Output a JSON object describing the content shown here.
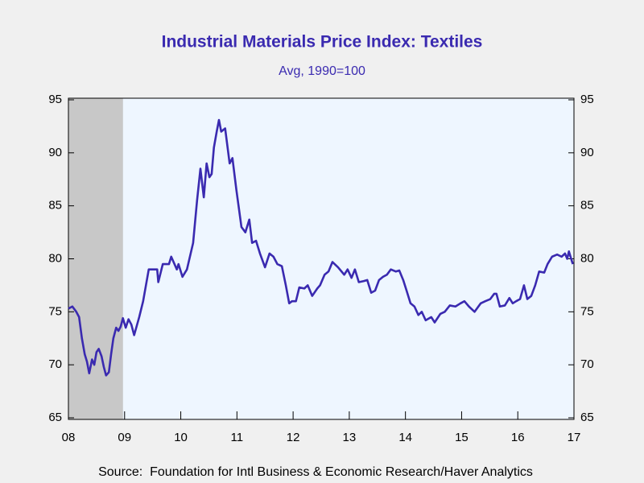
{
  "chart_data": {
    "type": "line",
    "title": "Industrial Materials Price Index: Textiles",
    "subtitle": "Avg, 1990=100",
    "source": "Source:  Foundation for Intl Business & Economic Research/Haver Analytics",
    "x": [
      2008.0,
      2008.07,
      2008.14,
      2008.19,
      2008.24,
      2008.29,
      2008.33,
      2008.37,
      2008.42,
      2008.46,
      2008.5,
      2008.54,
      2008.59,
      2008.63,
      2008.67,
      2008.72,
      2008.76,
      2008.8,
      2008.85,
      2008.89,
      2008.93,
      2008.97,
      2009.02,
      2009.07,
      2009.12,
      2009.17,
      2009.26,
      2009.33,
      2009.43,
      2009.58,
      2009.6,
      2009.68,
      2009.79,
      2009.83,
      2009.93,
      2009.96,
      2010.03,
      2010.11,
      2010.22,
      2010.29,
      2010.35,
      2010.41,
      2010.46,
      2010.51,
      2010.55,
      2010.59,
      2010.64,
      2010.68,
      2010.72,
      2010.79,
      2010.87,
      2010.92,
      2010.99,
      2011.08,
      2011.15,
      2011.22,
      2011.27,
      2011.34,
      2011.41,
      2011.5,
      2011.58,
      2011.65,
      2011.72,
      2011.8,
      2011.87,
      2011.93,
      2011.98,
      2012.05,
      2012.11,
      2012.2,
      2012.26,
      2012.34,
      2012.43,
      2012.48,
      2012.56,
      2012.63,
      2012.7,
      2012.8,
      2012.91,
      2012.97,
      2013.04,
      2013.1,
      2013.17,
      2013.26,
      2013.32,
      2013.39,
      2013.46,
      2013.53,
      2013.6,
      2013.67,
      2013.74,
      2013.83,
      2013.89,
      2013.96,
      2014.02,
      2014.09,
      2014.16,
      2014.23,
      2014.29,
      2014.36,
      2014.46,
      2014.52,
      2014.62,
      2014.7,
      2014.79,
      2014.89,
      2014.98,
      2015.05,
      2015.13,
      2015.23,
      2015.34,
      2015.42,
      2015.51,
      2015.58,
      2015.62,
      2015.68,
      2015.77,
      2015.85,
      2015.91,
      2015.97,
      2016.04,
      2016.11,
      2016.17,
      2016.24,
      2016.31,
      2016.38,
      2016.47,
      2016.53,
      2016.61,
      2016.7,
      2016.78,
      2016.84,
      2016.88,
      2016.91,
      2016.95,
      2016.98
    ],
    "series": [
      {
        "color": "#3a2ab0",
        "values": [
          75.3,
          75.5,
          75.0,
          74.5,
          72.5,
          71.0,
          70.3,
          69.2,
          70.5,
          70.0,
          71.2,
          71.5,
          70.8,
          69.8,
          69.0,
          69.3,
          71.0,
          72.5,
          73.5,
          73.2,
          73.6,
          74.4,
          73.5,
          74.3,
          73.8,
          72.8,
          74.5,
          76.0,
          79.0,
          79.0,
          77.8,
          79.5,
          79.5,
          80.2,
          79.0,
          79.5,
          78.3,
          79.0,
          81.5,
          85.5,
          88.5,
          85.8,
          89.0,
          87.7,
          88.0,
          90.5,
          92.0,
          93.1,
          92.0,
          92.3,
          89.0,
          89.5,
          86.5,
          83.0,
          82.5,
          83.7,
          81.5,
          81.7,
          80.5,
          79.2,
          80.5,
          80.2,
          79.5,
          79.3,
          77.5,
          75.8,
          76.0,
          76.0,
          77.3,
          77.2,
          77.5,
          76.5,
          77.2,
          77.5,
          78.5,
          78.8,
          79.7,
          79.2,
          78.5,
          79.0,
          78.2,
          79.0,
          77.8,
          77.9,
          78.0,
          76.8,
          77.0,
          78.0,
          78.3,
          78.5,
          79.0,
          78.8,
          78.9,
          78.0,
          77.0,
          75.8,
          75.5,
          74.7,
          75.0,
          74.2,
          74.5,
          74.0,
          74.8,
          75.0,
          75.6,
          75.5,
          75.8,
          76.0,
          75.5,
          75.0,
          75.8,
          76.0,
          76.2,
          76.7,
          76.7,
          75.5,
          75.6,
          76.3,
          75.8,
          76.0,
          76.2,
          77.5,
          76.2,
          76.5,
          77.5,
          78.8,
          78.7,
          79.5,
          80.2,
          80.4,
          80.2,
          80.5,
          80.0,
          80.7,
          80.0,
          79.5
        ]
      }
    ],
    "recession": [
      2008.0,
      2009.0
    ],
    "xlim": [
      2008,
      2017
    ],
    "xticks": [
      {
        "value": 2008,
        "label": "08"
      },
      {
        "value": 2009,
        "label": "09"
      },
      {
        "value": 2010,
        "label": "10"
      },
      {
        "value": 2011,
        "label": "11"
      },
      {
        "value": 2012,
        "label": "12"
      },
      {
        "value": 2013,
        "label": "13"
      },
      {
        "value": 2014,
        "label": "14"
      },
      {
        "value": 2015,
        "label": "15"
      },
      {
        "value": 2016,
        "label": "16"
      },
      {
        "value": 2017,
        "label": "17"
      }
    ],
    "ylim": [
      65,
      95
    ],
    "yticks": [
      65,
      70,
      75,
      80,
      85,
      90,
      95
    ],
    "y2lim": [
      65,
      95
    ],
    "y2ticks": [
      65,
      70,
      75,
      80,
      85,
      90,
      95
    ]
  }
}
